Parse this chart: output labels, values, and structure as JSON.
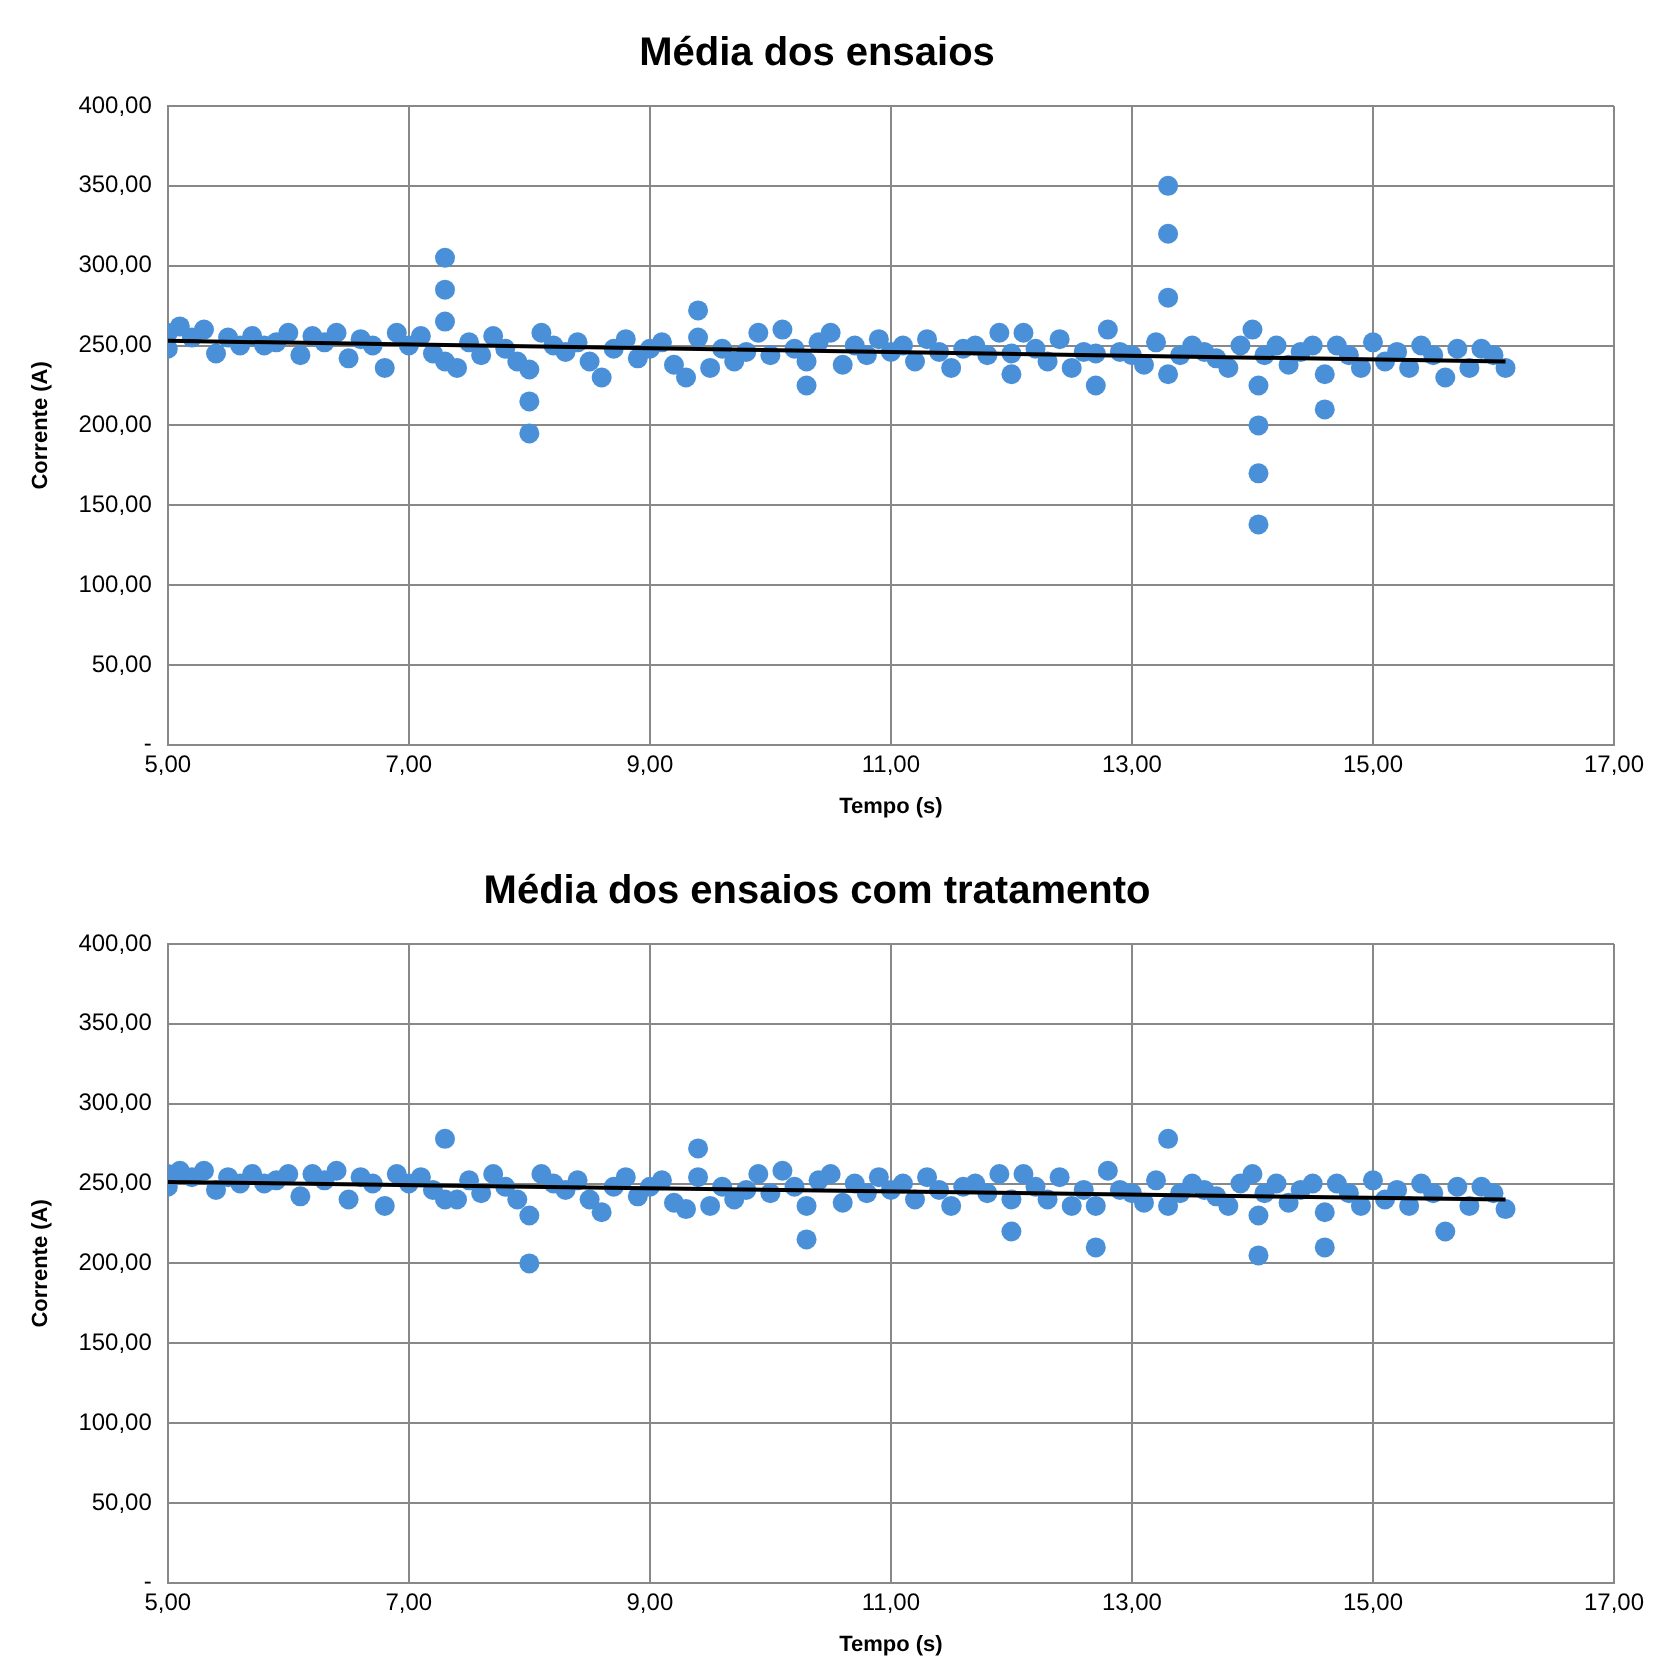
{
  "chart_data": [
    {
      "type": "scatter",
      "title": "Média dos ensaios",
      "xlabel": "Tempo (s)",
      "ylabel": "Corrente (A)",
      "xlim": [
        5,
        17
      ],
      "xticks": [
        {
          "value": 5,
          "label": "5,00"
        },
        {
          "value": 7,
          "label": "7,00"
        },
        {
          "value": 9,
          "label": "9,00"
        },
        {
          "value": 11,
          "label": "11,00"
        },
        {
          "value": 13,
          "label": "13,00"
        },
        {
          "value": 15,
          "label": "15,00"
        },
        {
          "value": 17,
          "label": "17,00"
        }
      ],
      "ylim": [
        0,
        400
      ],
      "yticks": [
        {
          "value": 0,
          "label": "-"
        },
        {
          "value": 50,
          "label": "50,00"
        },
        {
          "value": 100,
          "label": "100,00"
        },
        {
          "value": 150,
          "label": "150,00"
        },
        {
          "value": 200,
          "label": "200,00"
        },
        {
          "value": 250,
          "label": "250,00"
        },
        {
          "value": 300,
          "label": "300,00"
        },
        {
          "value": 350,
          "label": "350,00"
        },
        {
          "value": 400,
          "label": "400,00"
        }
      ],
      "grid": true,
      "legend": false,
      "series": [
        {
          "marker": "circle",
          "color": "#4a90d9",
          "x": [
            5.0,
            5.0,
            5.1,
            5.2,
            5.3,
            5.4,
            5.5,
            5.6,
            5.7,
            5.8,
            5.9,
            6.0,
            6.1,
            6.2,
            6.3,
            6.4,
            6.5,
            6.6,
            6.7,
            6.8,
            6.9,
            7.0,
            7.1,
            7.2,
            7.3,
            7.3,
            7.3,
            7.3,
            7.4,
            7.5,
            7.6,
            7.7,
            7.8,
            7.9,
            8.0,
            8.0,
            8.0,
            8.1,
            8.2,
            8.3,
            8.4,
            8.5,
            8.6,
            8.7,
            8.8,
            8.9,
            9.0,
            9.1,
            9.2,
            9.3,
            9.4,
            9.4,
            9.5,
            9.6,
            9.7,
            9.8,
            9.9,
            10.0,
            10.1,
            10.2,
            10.3,
            10.3,
            10.4,
            10.5,
            10.6,
            10.7,
            10.8,
            10.9,
            11.0,
            11.1,
            11.2,
            11.3,
            11.4,
            11.5,
            11.6,
            11.7,
            11.8,
            11.9,
            12.0,
            12.0,
            12.1,
            12.2,
            12.3,
            12.4,
            12.5,
            12.6,
            12.7,
            12.7,
            12.8,
            12.9,
            13.0,
            13.1,
            13.2,
            13.3,
            13.3,
            13.3,
            13.3,
            13.4,
            13.5,
            13.6,
            13.7,
            13.8,
            13.9,
            14.0,
            14.05,
            14.05,
            14.05,
            14.05,
            14.1,
            14.2,
            14.3,
            14.4,
            14.5,
            14.6,
            14.6,
            14.7,
            14.8,
            14.9,
            15.0,
            15.1,
            15.2,
            15.3,
            15.4,
            15.5,
            15.6,
            15.7,
            15.8,
            15.9,
            16.0,
            16.1
          ],
          "values": [
            258,
            248,
            262,
            255,
            260,
            245,
            255,
            250,
            256,
            250,
            252,
            258,
            244,
            256,
            252,
            258,
            242,
            254,
            250,
            236,
            258,
            250,
            256,
            245,
            240,
            265,
            285,
            305,
            236,
            252,
            244,
            256,
            248,
            240,
            195,
            215,
            235,
            258,
            250,
            246,
            252,
            240,
            230,
            248,
            254,
            242,
            248,
            252,
            238,
            230,
            272,
            255,
            236,
            248,
            240,
            246,
            258,
            244,
            260,
            248,
            225,
            240,
            252,
            258,
            238,
            250,
            244,
            254,
            246,
            250,
            240,
            254,
            246,
            236,
            248,
            250,
            244,
            258,
            232,
            245,
            258,
            248,
            240,
            254,
            236,
            246,
            225,
            245,
            260,
            246,
            244,
            238,
            252,
            232,
            280,
            320,
            350,
            244,
            250,
            246,
            242,
            236,
            250,
            260,
            138,
            170,
            200,
            225,
            244,
            250,
            238,
            246,
            250,
            210,
            232,
            250,
            244,
            236,
            252,
            240,
            246,
            236,
            250,
            244,
            230,
            248,
            236,
            248,
            244,
            236
          ]
        },
        {
          "type": "line",
          "marker": "none",
          "color": "#000000",
          "x": [
            5.0,
            16.1
          ],
          "values": [
            253,
            240
          ]
        }
      ]
    },
    {
      "type": "scatter",
      "title": "Média dos ensaios com tratamento",
      "xlabel": "Tempo (s)",
      "ylabel": "Corrente (A)",
      "xlim": [
        5,
        17
      ],
      "xticks": [
        {
          "value": 5,
          "label": "5,00"
        },
        {
          "value": 7,
          "label": "7,00"
        },
        {
          "value": 9,
          "label": "9,00"
        },
        {
          "value": 11,
          "label": "11,00"
        },
        {
          "value": 13,
          "label": "13,00"
        },
        {
          "value": 15,
          "label": "15,00"
        },
        {
          "value": 17,
          "label": "17,00"
        }
      ],
      "ylim": [
        0,
        400
      ],
      "yticks": [
        {
          "value": 0,
          "label": "-"
        },
        {
          "value": 50,
          "label": "50,00"
        },
        {
          "value": 100,
          "label": "100,00"
        },
        {
          "value": 150,
          "label": "150,00"
        },
        {
          "value": 200,
          "label": "200,00"
        },
        {
          "value": 250,
          "label": "250,00"
        },
        {
          "value": 300,
          "label": "300,00"
        },
        {
          "value": 350,
          "label": "350,00"
        },
        {
          "value": 400,
          "label": "400,00"
        }
      ],
      "grid": true,
      "legend": false,
      "series": [
        {
          "marker": "circle",
          "color": "#4a90d9",
          "x": [
            5.0,
            5.0,
            5.1,
            5.2,
            5.3,
            5.4,
            5.5,
            5.6,
            5.7,
            5.8,
            5.9,
            6.0,
            6.1,
            6.2,
            6.3,
            6.4,
            6.5,
            6.6,
            6.7,
            6.8,
            6.9,
            7.0,
            7.1,
            7.2,
            7.3,
            7.3,
            7.4,
            7.5,
            7.6,
            7.7,
            7.8,
            7.9,
            8.0,
            8.0,
            8.1,
            8.2,
            8.3,
            8.4,
            8.5,
            8.6,
            8.7,
            8.8,
            8.9,
            9.0,
            9.1,
            9.2,
            9.3,
            9.4,
            9.4,
            9.5,
            9.6,
            9.7,
            9.8,
            9.9,
            10.0,
            10.1,
            10.2,
            10.3,
            10.3,
            10.4,
            10.5,
            10.6,
            10.7,
            10.8,
            10.9,
            11.0,
            11.1,
            11.2,
            11.3,
            11.4,
            11.5,
            11.6,
            11.7,
            11.8,
            11.9,
            12.0,
            12.0,
            12.1,
            12.2,
            12.3,
            12.4,
            12.5,
            12.6,
            12.7,
            12.7,
            12.8,
            12.9,
            13.0,
            13.1,
            13.2,
            13.3,
            13.3,
            13.4,
            13.5,
            13.6,
            13.7,
            13.8,
            13.9,
            14.0,
            14.05,
            14.05,
            14.1,
            14.2,
            14.3,
            14.4,
            14.5,
            14.6,
            14.6,
            14.7,
            14.8,
            14.9,
            15.0,
            15.1,
            15.2,
            15.3,
            15.4,
            15.5,
            15.6,
            15.7,
            15.8,
            15.9,
            16.0,
            16.1
          ],
          "values": [
            256,
            248,
            258,
            254,
            258,
            246,
            254,
            250,
            256,
            250,
            252,
            256,
            242,
            256,
            252,
            258,
            240,
            254,
            250,
            236,
            256,
            250,
            254,
            246,
            240,
            278,
            240,
            252,
            244,
            256,
            248,
            240,
            200,
            230,
            256,
            250,
            246,
            252,
            240,
            232,
            248,
            254,
            242,
            248,
            252,
            238,
            234,
            272,
            254,
            236,
            248,
            240,
            246,
            256,
            244,
            258,
            248,
            215,
            236,
            252,
            256,
            238,
            250,
            244,
            254,
            246,
            250,
            240,
            254,
            246,
            236,
            248,
            250,
            244,
            256,
            220,
            240,
            256,
            248,
            240,
            254,
            236,
            246,
            210,
            236,
            258,
            246,
            244,
            238,
            252,
            236,
            278,
            244,
            250,
            246,
            242,
            236,
            250,
            256,
            205,
            230,
            244,
            250,
            238,
            246,
            250,
            210,
            232,
            250,
            244,
            236,
            252,
            240,
            246,
            236,
            250,
            244,
            220,
            248,
            236,
            248,
            244,
            234
          ]
        },
        {
          "type": "line",
          "marker": "none",
          "color": "#000000",
          "x": [
            5.0,
            16.1
          ],
          "values": [
            251,
            240
          ]
        }
      ]
    }
  ]
}
